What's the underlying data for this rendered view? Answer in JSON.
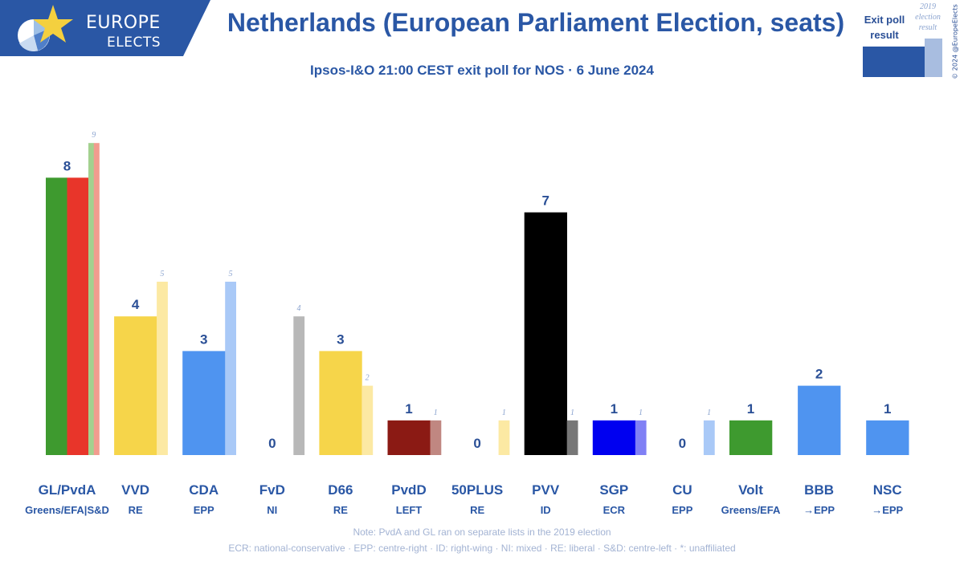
{
  "logo": {
    "line1": "EUROPE",
    "line2": "ELECTS"
  },
  "header": {
    "title": "Netherlands (European Parliament Election, seats)",
    "subtitle": "Ipsos-I&O 21:00 CEST exit poll for NOS · 6 June 2024"
  },
  "legend": {
    "main_label_line1": "Exit poll",
    "main_label_line2": "result",
    "prev_label_line1": "2019",
    "prev_label_line2": "election",
    "prev_label_line3": "result",
    "main_color": "#2a57a5",
    "prev_color": "#a8bde0"
  },
  "copyright": "© 2024 @EuropeElects",
  "footnotes": {
    "note": "Note: PvdA and GL ran on separate lists in the 2019 election",
    "abbreviations": "ECR: national-conservative · EPP: centre-right · ID: right-wing · NI: mixed · RE: liberal · S&D: centre-left · *: unaffiliated"
  },
  "chart_data": {
    "type": "bar",
    "title": "Netherlands (European Parliament Election, seats)",
    "subtitle": "Ipsos-I&O 21:00 CEST exit poll for NOS · 6 June 2024",
    "ylim": [
      0,
      9
    ],
    "grid": false,
    "series": [
      {
        "name": "Exit poll result",
        "values": [
          8,
          4,
          3,
          0,
          3,
          1,
          0,
          7,
          1,
          0,
          1,
          2,
          1
        ]
      },
      {
        "name": "2019 election result",
        "values": [
          9,
          5,
          5,
          4,
          2,
          1,
          1,
          1,
          1,
          1,
          null,
          null,
          null
        ]
      }
    ],
    "categories": [
      {
        "party": "GL/PvdA",
        "group": "Greens/EFA|S&D",
        "value": 8,
        "prev": 9,
        "colors": [
          "#3e9a2f",
          "#e8352a"
        ],
        "prev_colors": [
          "#a3d18f",
          "#f29c8f"
        ]
      },
      {
        "party": "VVD",
        "group": "RE",
        "value": 4,
        "prev": 5,
        "colors": [
          "#f6d54a"
        ],
        "prev_colors": [
          "#fce9a3"
        ]
      },
      {
        "party": "CDA",
        "group": "EPP",
        "value": 3,
        "prev": 5,
        "colors": [
          "#4f94f0"
        ],
        "prev_colors": [
          "#a9c9f7"
        ]
      },
      {
        "party": "FvD",
        "group": "NI",
        "value": 0,
        "prev": 4,
        "colors": [
          "#999999"
        ],
        "prev_colors": [
          "#b8b8b8"
        ]
      },
      {
        "party": "D66",
        "group": "RE",
        "value": 3,
        "prev": 2,
        "colors": [
          "#f6d54a"
        ],
        "prev_colors": [
          "#fce9a3"
        ]
      },
      {
        "party": "PvdD",
        "group": "LEFT",
        "value": 1,
        "prev": 1,
        "colors": [
          "#8b1a14"
        ],
        "prev_colors": [
          "#c08781"
        ]
      },
      {
        "party": "50PLUS",
        "group": "RE",
        "value": 0,
        "prev": 1,
        "colors": [
          "#f6d54a"
        ],
        "prev_colors": [
          "#fce9a3"
        ]
      },
      {
        "party": "PVV",
        "group": "ID",
        "value": 7,
        "prev": 1,
        "colors": [
          "#000000"
        ],
        "prev_colors": [
          "#777777"
        ]
      },
      {
        "party": "SGP",
        "group": "ECR",
        "value": 1,
        "prev": 1,
        "colors": [
          "#0000f0"
        ],
        "prev_colors": [
          "#8080f5"
        ]
      },
      {
        "party": "CU",
        "group": "EPP",
        "value": 0,
        "prev": 1,
        "colors": [
          "#4f94f0"
        ],
        "prev_colors": [
          "#a9c9f7"
        ]
      },
      {
        "party": "Volt",
        "group": "Greens/EFA",
        "value": 1,
        "prev": null,
        "colors": [
          "#3e9a2f"
        ],
        "prev_colors": []
      },
      {
        "party": "BBB",
        "group": "→EPP",
        "value": 2,
        "prev": null,
        "colors": [
          "#4f94f0"
        ],
        "prev_colors": []
      },
      {
        "party": "NSC",
        "group": "→EPP",
        "value": 1,
        "prev": null,
        "colors": [
          "#4f94f0"
        ],
        "prev_colors": []
      }
    ]
  }
}
